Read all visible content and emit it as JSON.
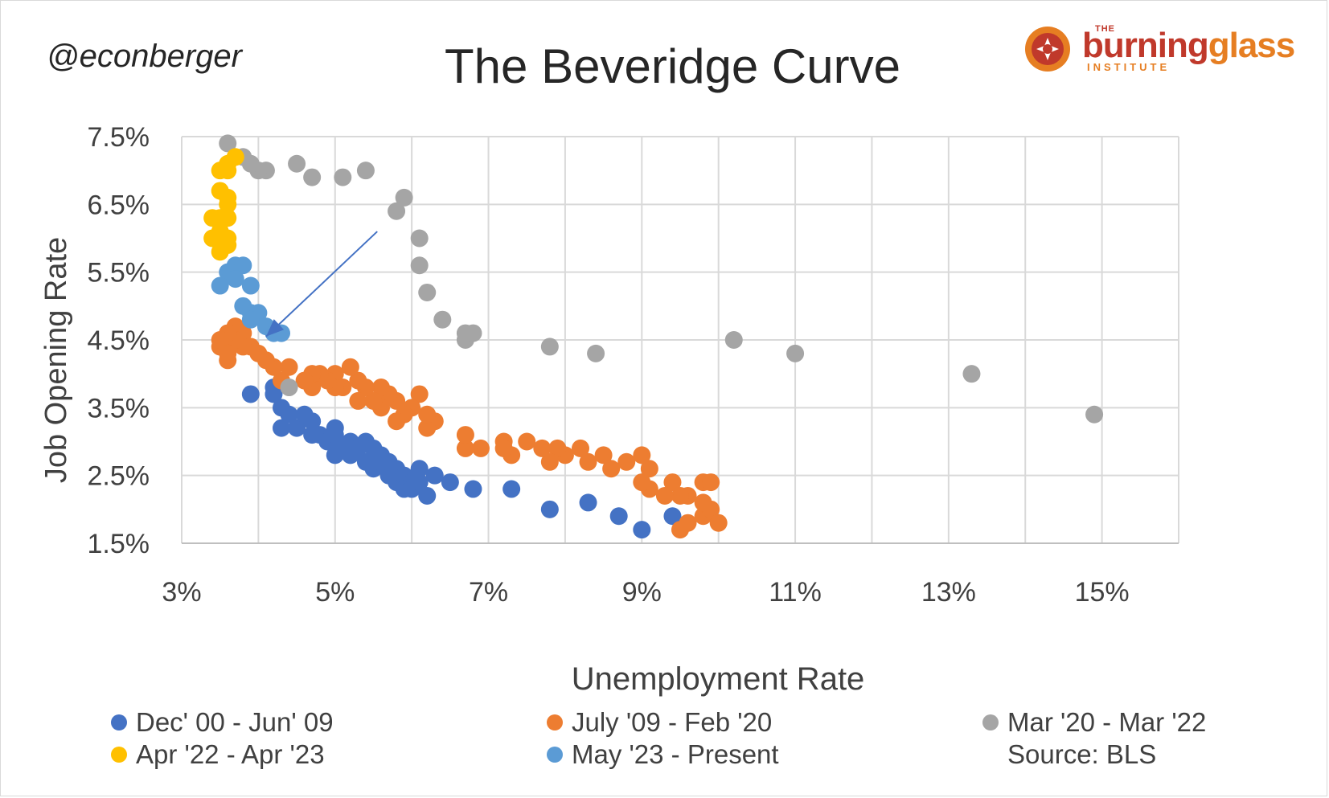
{
  "header": {
    "handle": "@econberger",
    "title": "The Beveridge Curve",
    "logo_the": "THE",
    "logo_word_1": "burning",
    "logo_word_2": "glass",
    "logo_institute": "INSTITUTE"
  },
  "source": "Source: BLS",
  "colors": {
    "dark_blue": "#4472c4",
    "orange": "#ed7d31",
    "gray": "#a5a5a5",
    "yellow": "#ffc000",
    "light_blue": "#5b9bd5",
    "arrow": "#4472c4",
    "grid": "#d9d9d9"
  },
  "chart_data": {
    "type": "scatter",
    "title": "The Beveridge Curve",
    "xlabel": "Unemployment Rate",
    "ylabel": "Job Opening Rate",
    "xlim": [
      3,
      16
    ],
    "ylim": [
      1.5,
      7.5
    ],
    "xticks": [
      "3%",
      "5%",
      "7%",
      "9%",
      "11%",
      "13%",
      "15%"
    ],
    "xtick_values": [
      3,
      5,
      7,
      9,
      11,
      13,
      15
    ],
    "yticks": [
      "1.5%",
      "2.5%",
      "3.5%",
      "4.5%",
      "5.5%",
      "6.5%",
      "7.5%"
    ],
    "ytick_values": [
      1.5,
      2.5,
      3.5,
      4.5,
      5.5,
      6.5,
      7.5
    ],
    "grid": true,
    "legend_position": "bottom",
    "annotation_arrow": {
      "from": [
        5.55,
        6.1
      ],
      "to": [
        4.1,
        4.55
      ]
    },
    "series": [
      {
        "name": "Dec' 00 - Jun' 09",
        "color": "#4472c4",
        "points": [
          [
            3.9,
            3.7
          ],
          [
            4.2,
            3.8
          ],
          [
            4.2,
            3.7
          ],
          [
            4.3,
            3.5
          ],
          [
            4.4,
            3.4
          ],
          [
            4.3,
            3.2
          ],
          [
            4.5,
            3.2
          ],
          [
            4.6,
            3.4
          ],
          [
            4.7,
            3.3
          ],
          [
            4.7,
            3.1
          ],
          [
            4.8,
            3.1
          ],
          [
            4.9,
            3.0
          ],
          [
            5.0,
            3.1
          ],
          [
            5.0,
            2.8
          ],
          [
            5.0,
            3.2
          ],
          [
            5.1,
            2.9
          ],
          [
            5.2,
            2.8
          ],
          [
            5.2,
            3.0
          ],
          [
            5.3,
            2.9
          ],
          [
            5.4,
            2.7
          ],
          [
            5.4,
            3.0
          ],
          [
            5.5,
            2.9
          ],
          [
            5.5,
            2.6
          ],
          [
            5.6,
            2.8
          ],
          [
            5.6,
            2.7
          ],
          [
            5.7,
            2.5
          ],
          [
            5.7,
            2.7
          ],
          [
            5.8,
            2.6
          ],
          [
            5.8,
            2.4
          ],
          [
            5.9,
            2.5
          ],
          [
            5.9,
            2.3
          ],
          [
            6.0,
            2.4
          ],
          [
            6.0,
            2.3
          ],
          [
            6.1,
            2.4
          ],
          [
            6.1,
            2.6
          ],
          [
            6.2,
            2.2
          ],
          [
            6.3,
            2.5
          ],
          [
            6.5,
            2.4
          ],
          [
            6.8,
            2.3
          ],
          [
            7.3,
            2.3
          ],
          [
            7.8,
            2.0
          ],
          [
            8.3,
            2.1
          ],
          [
            8.7,
            1.9
          ],
          [
            9.0,
            1.7
          ],
          [
            9.4,
            1.9
          ]
        ]
      },
      {
        "name": "July '09 - Feb '20",
        "color": "#ed7d31",
        "points": [
          [
            9.5,
            1.7
          ],
          [
            9.6,
            1.8
          ],
          [
            9.8,
            1.9
          ],
          [
            9.9,
            2.0
          ],
          [
            10.0,
            1.8
          ],
          [
            9.8,
            2.1
          ],
          [
            9.8,
            2.4
          ],
          [
            9.9,
            2.4
          ],
          [
            9.6,
            2.2
          ],
          [
            9.5,
            2.2
          ],
          [
            9.4,
            2.4
          ],
          [
            9.3,
            2.2
          ],
          [
            9.1,
            2.3
          ],
          [
            9.0,
            2.4
          ],
          [
            9.1,
            2.6
          ],
          [
            9.0,
            2.8
          ],
          [
            8.8,
            2.7
          ],
          [
            8.6,
            2.6
          ],
          [
            8.5,
            2.8
          ],
          [
            8.3,
            2.7
          ],
          [
            8.2,
            2.9
          ],
          [
            8.0,
            2.8
          ],
          [
            7.9,
            2.9
          ],
          [
            7.8,
            2.7
          ],
          [
            7.7,
            2.9
          ],
          [
            7.5,
            3.0
          ],
          [
            7.3,
            2.8
          ],
          [
            7.2,
            3.0
          ],
          [
            7.2,
            2.9
          ],
          [
            6.9,
            2.9
          ],
          [
            6.7,
            2.9
          ],
          [
            6.7,
            3.1
          ],
          [
            6.3,
            3.3
          ],
          [
            6.2,
            3.2
          ],
          [
            6.2,
            3.4
          ],
          [
            6.1,
            3.7
          ],
          [
            6.0,
            3.5
          ],
          [
            5.9,
            3.4
          ],
          [
            5.8,
            3.3
          ],
          [
            5.8,
            3.6
          ],
          [
            5.7,
            3.7
          ],
          [
            5.6,
            3.5
          ],
          [
            5.6,
            3.8
          ],
          [
            5.5,
            3.6
          ],
          [
            5.4,
            3.8
          ],
          [
            5.3,
            3.6
          ],
          [
            5.3,
            3.9
          ],
          [
            5.2,
            4.1
          ],
          [
            5.1,
            3.8
          ],
          [
            5.0,
            4.0
          ],
          [
            5.0,
            3.8
          ],
          [
            4.9,
            3.9
          ],
          [
            4.8,
            4.0
          ],
          [
            4.7,
            3.8
          ],
          [
            4.7,
            4.0
          ],
          [
            4.6,
            3.9
          ],
          [
            4.4,
            4.1
          ],
          [
            4.3,
            3.9
          ],
          [
            4.2,
            4.1
          ],
          [
            4.1,
            4.2
          ],
          [
            4.0,
            4.3
          ],
          [
            3.9,
            4.4
          ],
          [
            3.8,
            4.6
          ],
          [
            3.8,
            4.4
          ],
          [
            3.7,
            4.7
          ],
          [
            3.7,
            4.5
          ],
          [
            3.6,
            4.2
          ],
          [
            3.6,
            4.6
          ],
          [
            3.5,
            4.4
          ],
          [
            3.5,
            4.5
          ],
          [
            3.6,
            4.3
          ]
        ]
      },
      {
        "name": "Mar '20 - Mar '22",
        "color": "#a5a5a5",
        "points": [
          [
            4.4,
            3.8
          ],
          [
            14.9,
            3.4
          ],
          [
            13.3,
            4.0
          ],
          [
            11.0,
            4.3
          ],
          [
            10.2,
            4.5
          ],
          [
            8.4,
            4.3
          ],
          [
            7.8,
            4.4
          ],
          [
            6.7,
            4.5
          ],
          [
            6.8,
            4.6
          ],
          [
            6.7,
            4.6
          ],
          [
            6.4,
            4.8
          ],
          [
            6.2,
            5.2
          ],
          [
            6.1,
            5.6
          ],
          [
            6.1,
            6.0
          ],
          [
            5.9,
            6.6
          ],
          [
            5.8,
            6.4
          ],
          [
            5.4,
            7.0
          ],
          [
            5.1,
            6.9
          ],
          [
            4.7,
            6.9
          ],
          [
            4.5,
            7.1
          ],
          [
            4.1,
            7.0
          ],
          [
            4.0,
            7.0
          ],
          [
            3.9,
            7.1
          ],
          [
            3.8,
            7.2
          ],
          [
            3.6,
            7.4
          ]
        ]
      },
      {
        "name": "Apr '22 - Apr '23",
        "color": "#ffc000",
        "points": [
          [
            3.7,
            7.2
          ],
          [
            3.6,
            7.1
          ],
          [
            3.5,
            7.0
          ],
          [
            3.6,
            7.0
          ],
          [
            3.5,
            6.7
          ],
          [
            3.6,
            6.6
          ],
          [
            3.6,
            6.5
          ],
          [
            3.5,
            6.3
          ],
          [
            3.6,
            6.3
          ],
          [
            3.4,
            6.3
          ],
          [
            3.5,
            6.1
          ],
          [
            3.6,
            6.0
          ],
          [
            3.4,
            6.0
          ],
          [
            3.5,
            5.8
          ],
          [
            3.6,
            5.9
          ]
        ]
      },
      {
        "name": "May '23 - Present",
        "color": "#5b9bd5",
        "points": [
          [
            3.7,
            5.6
          ],
          [
            3.8,
            5.6
          ],
          [
            3.6,
            5.5
          ],
          [
            3.7,
            5.4
          ],
          [
            3.5,
            5.3
          ],
          [
            3.9,
            5.3
          ],
          [
            3.8,
            5.0
          ],
          [
            3.9,
            4.9
          ],
          [
            4.0,
            4.9
          ],
          [
            3.9,
            4.8
          ],
          [
            4.1,
            4.7
          ],
          [
            4.2,
            4.6
          ],
          [
            4.3,
            4.6
          ]
        ]
      }
    ]
  }
}
